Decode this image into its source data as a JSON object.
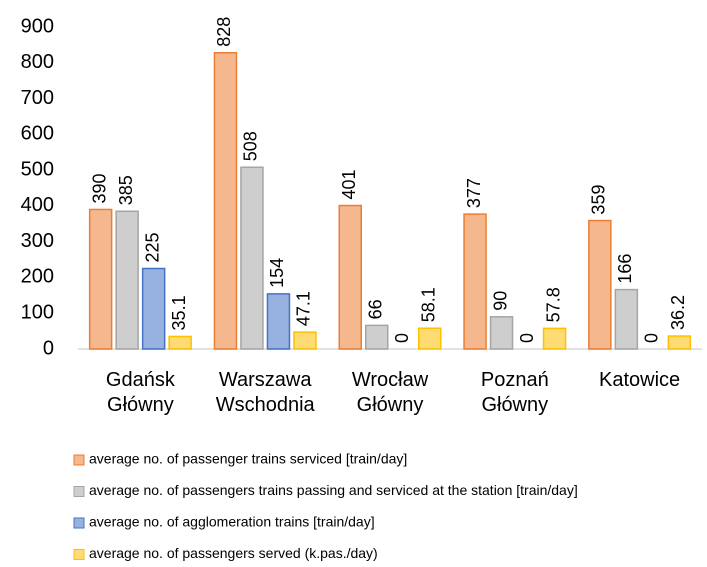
{
  "chart_data": {
    "type": "bar",
    "categories": [
      "Gdańsk Główny",
      "Warszawa Wschodnia",
      "Wrocław Główny",
      "Poznań Główny",
      "Katowice"
    ],
    "series": [
      {
        "name": "average no. of passenger trains serviced [train/day]",
        "color": "#ed7d31",
        "values": [
          390,
          828,
          401,
          377,
          359
        ]
      },
      {
        "name": "average no. of passengers trains passing and serviced at the station [train/day]",
        "color": "#a5a5a5",
        "values": [
          385,
          508,
          66,
          90,
          166
        ]
      },
      {
        "name": "average no. of agglomeration trains [train/day]",
        "color": "#4472c4",
        "values": [
          225,
          154,
          0,
          0,
          0
        ]
      },
      {
        "name": "average no. of passengers served (k.pas./day)",
        "color": "#ffc000",
        "values": [
          35.1,
          47.1,
          58.1,
          57.8,
          36.2
        ]
      }
    ],
    "ylim": [
      0,
      900
    ],
    "yticks": [
      0,
      100,
      200,
      300,
      400,
      500,
      600,
      700,
      800,
      900
    ],
    "grid": false,
    "legend": "bottom"
  }
}
